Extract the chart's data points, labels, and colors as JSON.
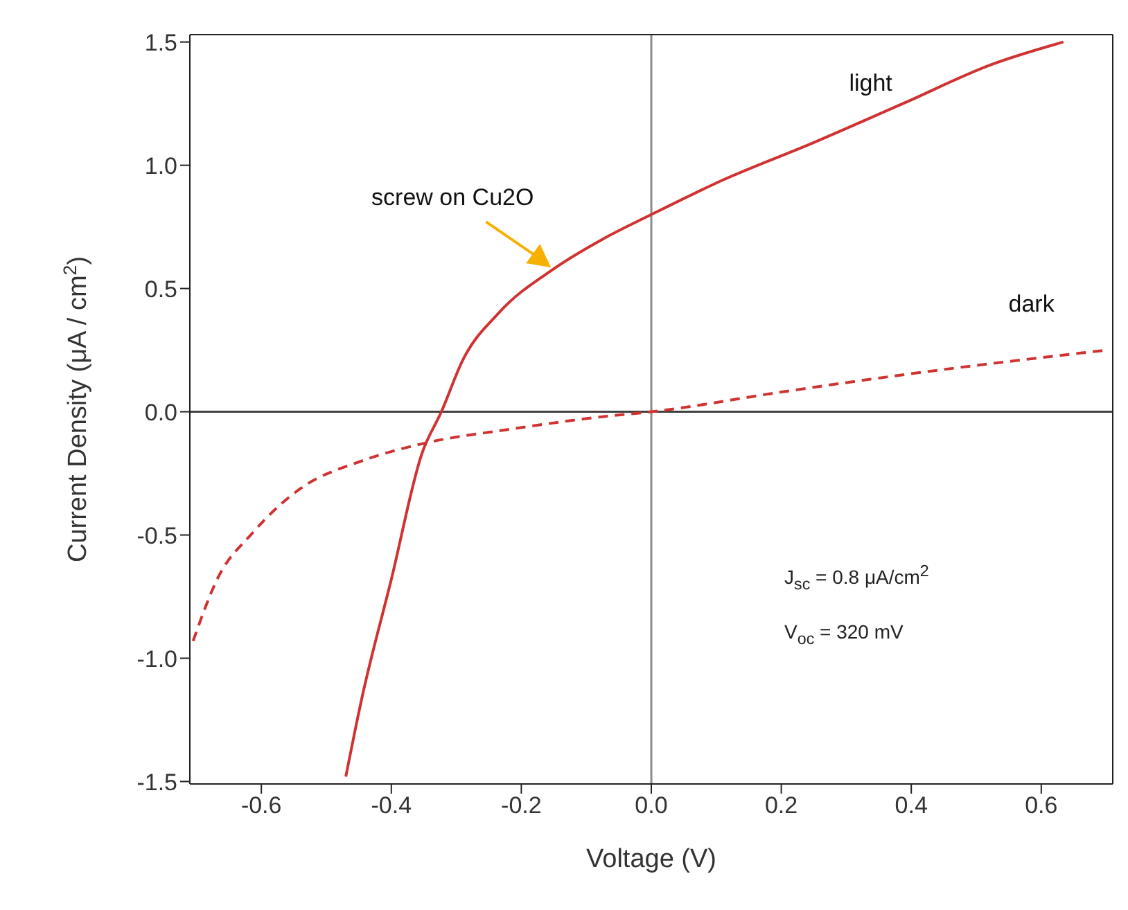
{
  "chart_data": {
    "type": "line",
    "xlabel": "Voltage (V)",
    "ylabel": "Current Density (μA / cm$^{2}$)",
    "xlim": [
      -0.71,
      0.71
    ],
    "xticks": [
      -0.6,
      -0.4,
      -0.2,
      {
        "value": 0,
        "label": "0.0"
      },
      0.2,
      0.4,
      0.6
    ],
    "ylim": [
      -1.51,
      1.53
    ],
    "yticks": [
      -1.5,
      {
        "value": -1,
        "label": "-1.0"
      },
      -0.5,
      {
        "value": 0,
        "label": "0.0"
      },
      0.5,
      {
        "value": 1,
        "label": "1.0"
      },
      1.5
    ],
    "marker": "none",
    "series": [
      {
        "name": "light",
        "color": "#d03232",
        "line_style": "solid",
        "x": [
          -0.47,
          -0.446,
          -0.4,
          -0.353,
          -0.323,
          -0.29,
          -0.235,
          -0.15,
          -0.075,
          0,
          0.11,
          0.248,
          0.387,
          0.525,
          0.634
        ],
        "values": [
          -1.48,
          -1.17,
          -0.68,
          -0.17,
          0,
          0.21,
          0.4,
          0.58,
          0.7,
          0.8,
          0.94,
          1.09,
          1.25,
          1.41,
          1.5
        ]
      },
      {
        "name": "dark",
        "color": "#d03232",
        "line_style": "dashed",
        "x": [
          -0.705,
          -0.668,
          -0.613,
          -0.539,
          -0.446,
          -0.353,
          -0.215,
          -0.075,
          0,
          0.2,
          0.387,
          0.7
        ],
        "values": [
          -0.93,
          -0.68,
          -0.49,
          -0.31,
          -0.2,
          -0.13,
          -0.07,
          -0.02,
          0,
          0.08,
          0.15,
          0.25
        ]
      }
    ],
    "ref_lines": [
      {
        "axis": "x",
        "value": 0,
        "color": "#8a8a8a"
      },
      {
        "axis": "y",
        "value": 0,
        "color": "#404040"
      }
    ],
    "annotations": [
      {
        "text": "screw on Cu2O",
        "x": -0.15,
        "y": 0.58
      },
      "J$_{sc}$ = 0.8 μA/cm$^{2}$",
      "V$_{oc}$ = 320 mV"
    ]
  }
}
